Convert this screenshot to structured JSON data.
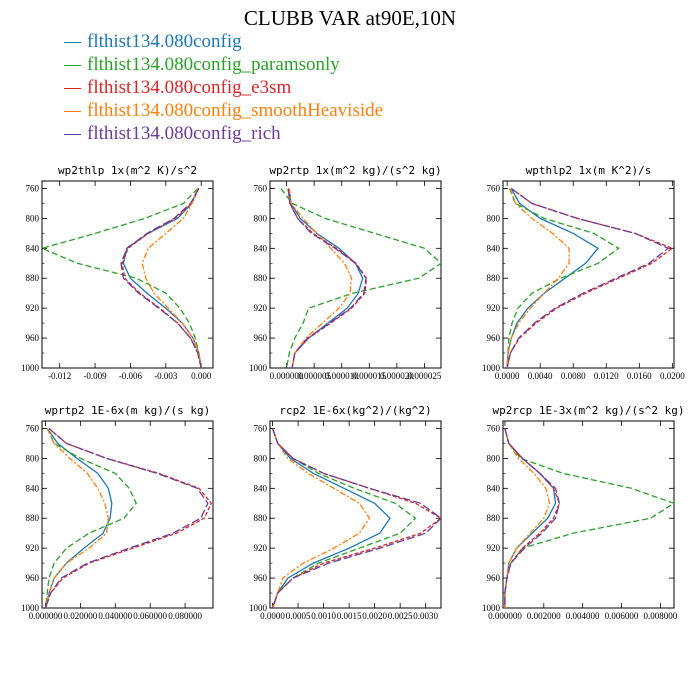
{
  "title": "CLUBB VAR at90E,10N",
  "legend": [
    {
      "label": "flthist134.080config",
      "color": "#1f77b4"
    },
    {
      "label": "flthist134.080config_paramsonly",
      "color": "#2ca02c"
    },
    {
      "label": "flthist134.080config_e3sm",
      "color": "#d62728"
    },
    {
      "label": "flthist134.080config_smoothHeaviside",
      "color": "#ff7f0e"
    },
    {
      "label": "flthist134.080config_rich",
      "color": "#6a3d9a"
    }
  ],
  "chart_data": [
    {
      "type": "line",
      "title": "wp2thlp  1x(m^2 K)/s^2",
      "xlim": [
        -0.0135,
        0.001
      ],
      "ylim": [
        1000,
        750
      ],
      "y_reversed": true,
      "grid": false,
      "x_ticks": [
        -0.012,
        -0.009,
        -0.006,
        -0.003,
        0.0
      ],
      "x_tick_labels": [
        "-0.012",
        "-0.009",
        "-0.006",
        "-0.003",
        "0.000"
      ],
      "y_ticks": [
        760,
        800,
        840,
        880,
        920,
        960,
        1000
      ],
      "y_tick_labels": [
        "760",
        "800",
        "840",
        "880",
        "920",
        "960",
        "1000"
      ],
      "y": [
        760,
        780,
        800,
        820,
        840,
        860,
        880,
        900,
        920,
        940,
        960,
        980,
        1000
      ],
      "series": [
        {
          "name": "flthist134.080config",
          "color": "#1f77b4",
          "values": [
            -0.0003,
            -0.0008,
            -0.002,
            -0.0045,
            -0.0063,
            -0.0066,
            -0.006,
            -0.0046,
            -0.003,
            -0.0016,
            -0.0007,
            -0.0002,
            0.0
          ]
        },
        {
          "name": "flthist134.080config_paramsonly",
          "color": "#2ca02c",
          "values": [
            -0.0003,
            -0.0015,
            -0.0048,
            -0.009,
            -0.0135,
            -0.0105,
            -0.0055,
            -0.003,
            -0.0018,
            -0.001,
            -0.0005,
            -0.0002,
            0.0
          ]
        },
        {
          "name": "flthist134.080config_e3sm",
          "color": "#d62728",
          "values": [
            -0.0002,
            -0.0008,
            -0.0022,
            -0.0045,
            -0.0062,
            -0.0067,
            -0.0065,
            -0.0052,
            -0.0035,
            -0.002,
            -0.0009,
            -0.0003,
            0.0
          ]
        },
        {
          "name": "flthist134.080config_smoothHeaviside",
          "color": "#ff7f0e",
          "values": [
            -0.0003,
            -0.0008,
            -0.0015,
            -0.003,
            -0.0045,
            -0.005,
            -0.0047,
            -0.004,
            -0.0028,
            -0.0016,
            -0.0007,
            -0.0002,
            0.0
          ]
        },
        {
          "name": "flthist134.080config_rich",
          "color": "#6a3d9a",
          "values": [
            -0.0002,
            -0.0009,
            -0.0023,
            -0.0046,
            -0.0063,
            -0.0068,
            -0.0066,
            -0.0053,
            -0.0036,
            -0.002,
            -0.0009,
            -0.0003,
            0.0
          ]
        }
      ]
    },
    {
      "type": "line",
      "title": "wp2rtp  1x(m^2 kg)/(s^2 kg)",
      "xlim": [
        -3e-06,
        2.8e-05
      ],
      "ylim": [
        1000,
        750
      ],
      "y_reversed": true,
      "grid": false,
      "x_ticks": [
        0.0,
        5e-06,
        1e-05,
        1.5e-05,
        2e-05,
        2.5e-05
      ],
      "x_tick_labels": [
        "0.000000",
        "0.000005",
        "0.000010",
        "0.000015",
        "0.000020",
        "0.000025"
      ],
      "y_ticks": [
        760,
        800,
        840,
        880,
        920,
        960,
        1000
      ],
      "y_tick_labels": [
        "760",
        "800",
        "840",
        "880",
        "920",
        "960",
        "1000"
      ],
      "y": [
        760,
        780,
        800,
        820,
        840,
        860,
        880,
        900,
        920,
        940,
        960,
        980,
        1000
      ],
      "series": [
        {
          "name": "flthist134.080config",
          "color": "#1f77b4",
          "values": [
            5e-07,
            8e-07,
            2.5e-06,
            5.5e-06,
            9.5e-06,
            1.25e-05,
            1.38e-05,
            1.3e-05,
            1.1e-05,
            7.5e-06,
            4e-06,
            1.5e-06,
            1e-06
          ]
        },
        {
          "name": "flthist134.080config_paramsonly",
          "color": "#2ca02c",
          "values": [
            -1e-06,
            1e-06,
            7e-06,
            1.6e-05,
            2.5e-05,
            2.8e-05,
            2.4e-05,
            1.2e-05,
            4e-06,
            3e-06,
            1.5e-06,
            5e-07,
            0.0
          ]
        },
        {
          "name": "flthist134.080config_e3sm",
          "color": "#d62728",
          "values": [
            3e-07,
            6e-07,
            2e-06,
            4.8e-06,
            9e-06,
            1.26e-05,
            1.45e-05,
            1.42e-05,
            1.18e-05,
            8e-06,
            4e-06,
            1.5e-06,
            1e-06
          ]
        },
        {
          "name": "flthist134.080config_smoothHeaviside",
          "color": "#ff7f0e",
          "values": [
            5e-07,
            8e-07,
            3e-06,
            5.5e-06,
            8e-06,
            1.05e-05,
            1.18e-05,
            1.15e-05,
            9.5e-06,
            6.5e-06,
            3.5e-06,
            1.5e-06,
            1e-06
          ]
        },
        {
          "name": "flthist134.080config_rich",
          "color": "#6a3d9a",
          "values": [
            3e-07,
            6e-07,
            2e-06,
            4.5e-06,
            8.8e-06,
            1.25e-05,
            1.44e-05,
            1.4e-05,
            1.16e-05,
            7.8e-06,
            3.8e-06,
            1.5e-06,
            1e-06
          ]
        }
      ]
    },
    {
      "type": "line",
      "title": "wpthlp2  1x(m K^2)/s",
      "xlim": [
        -0.0005,
        0.0202
      ],
      "ylim": [
        1000,
        750
      ],
      "y_reversed": true,
      "grid": false,
      "x_ticks": [
        0.0,
        0.004,
        0.008,
        0.012,
        0.016,
        0.02
      ],
      "x_tick_labels": [
        "0.0000",
        "0.0040",
        "0.0080",
        "0.0120",
        "0.0160",
        "0.0200"
      ],
      "y_ticks": [
        760,
        800,
        840,
        880,
        920,
        960,
        1000
      ],
      "y_tick_labels": [
        "760",
        "800",
        "840",
        "880",
        "920",
        "960",
        "1000"
      ],
      "y": [
        760,
        780,
        800,
        820,
        840,
        860,
        880,
        900,
        920,
        940,
        960,
        980,
        1000
      ],
      "series": [
        {
          "name": "flthist134.080config",
          "color": "#1f77b4",
          "values": [
            0.0005,
            0.0015,
            0.004,
            0.008,
            0.011,
            0.0095,
            0.007,
            0.0045,
            0.0025,
            0.0012,
            0.0005,
            0.0001,
            0.0
          ]
        },
        {
          "name": "flthist134.080config_paramsonly",
          "color": "#2ca02c",
          "values": [
            0.0003,
            0.001,
            0.0045,
            0.0105,
            0.0135,
            0.011,
            0.0065,
            0.003,
            0.0013,
            0.0006,
            0.0002,
            0.0001,
            0.0
          ]
        },
        {
          "name": "flthist134.080config_e3sm",
          "color": "#d62728",
          "values": [
            0.0005,
            0.003,
            0.0085,
            0.0155,
            0.02,
            0.0175,
            0.0135,
            0.0095,
            0.006,
            0.0035,
            0.0015,
            0.0004,
            0.0
          ]
        },
        {
          "name": "flthist134.080config_smoothHeaviside",
          "color": "#ff7f0e",
          "values": [
            0.0004,
            0.001,
            0.003,
            0.0055,
            0.0075,
            0.0075,
            0.0062,
            0.0045,
            0.0028,
            0.0014,
            0.0005,
            0.0001,
            0.0
          ]
        },
        {
          "name": "flthist134.080config_rich",
          "color": "#6a3d9a",
          "values": [
            0.0005,
            0.003,
            0.0085,
            0.0155,
            0.0195,
            0.0172,
            0.0132,
            0.0092,
            0.0058,
            0.0033,
            0.0014,
            0.0004,
            0.0
          ]
        }
      ]
    },
    {
      "type": "line",
      "title": "wprtp2  1E-6x(m kg)/(s kg)",
      "xlim": [
        -0.002,
        0.096
      ],
      "ylim": [
        1000,
        750
      ],
      "y_reversed": true,
      "grid": false,
      "x_ticks": [
        0.0,
        0.02,
        0.04,
        0.06,
        0.08
      ],
      "x_tick_labels": [
        "0.000000",
        "0.020000",
        "0.040000",
        "0.060000",
        "0.080000"
      ],
      "y_ticks": [
        760,
        800,
        840,
        880,
        920,
        960,
        1000
      ],
      "y_tick_labels": [
        "760",
        "800",
        "840",
        "880",
        "920",
        "960",
        "1000"
      ],
      "y": [
        760,
        780,
        800,
        820,
        840,
        860,
        880,
        900,
        920,
        940,
        960,
        980,
        1000
      ],
      "series": [
        {
          "name": "flthist134.080config",
          "color": "#1f77b4",
          "values": [
            0.001,
            0.007,
            0.018,
            0.03,
            0.036,
            0.038,
            0.037,
            0.033,
            0.022,
            0.012,
            0.005,
            0.002,
            0.0
          ]
        },
        {
          "name": "flthist134.080config_paramsonly",
          "color": "#2ca02c",
          "values": [
            0.001,
            0.005,
            0.02,
            0.04,
            0.048,
            0.052,
            0.045,
            0.025,
            0.012,
            0.005,
            0.002,
            0.001,
            0.0
          ]
        },
        {
          "name": "flthist134.080config_e3sm",
          "color": "#d62728",
          "values": [
            0.002,
            0.012,
            0.035,
            0.065,
            0.088,
            0.095,
            0.091,
            0.075,
            0.05,
            0.025,
            0.01,
            0.003,
            0.0
          ]
        },
        {
          "name": "flthist134.080config_smoothHeaviside",
          "color": "#ff7f0e",
          "values": [
            0.001,
            0.005,
            0.014,
            0.024,
            0.03,
            0.034,
            0.036,
            0.035,
            0.025,
            0.012,
            0.005,
            0.002,
            0.0
          ]
        },
        {
          "name": "flthist134.080config_rich",
          "color": "#6a3d9a",
          "values": [
            0.002,
            0.012,
            0.035,
            0.064,
            0.087,
            0.093,
            0.089,
            0.073,
            0.048,
            0.024,
            0.009,
            0.003,
            0.0
          ]
        }
      ]
    },
    {
      "type": "line",
      "title": "rcp2  1E-6x(kg^2)/(kg^2)",
      "xlim": [
        -5e-05,
        0.0033
      ],
      "ylim": [
        1000,
        750
      ],
      "y_reversed": true,
      "grid": false,
      "x_ticks": [
        0.0,
        0.0005,
        0.001,
        0.0015,
        0.002,
        0.0025,
        0.003
      ],
      "x_tick_labels": [
        "0.0000",
        "0.0005",
        "0.0010",
        "0.0015",
        "0.0020",
        "0.0025",
        "0.0030"
      ],
      "y_ticks": [
        760,
        800,
        840,
        880,
        920,
        960,
        1000
      ],
      "y_tick_labels": [
        "760",
        "800",
        "840",
        "880",
        "920",
        "960",
        "1000"
      ],
      "y": [
        760,
        780,
        800,
        820,
        840,
        860,
        880,
        900,
        920,
        940,
        960,
        980,
        1000
      ],
      "series": [
        {
          "name": "flthist134.080config",
          "color": "#1f77b4",
          "values": [
            0.0,
            0.0001,
            0.00035,
            0.0008,
            0.0014,
            0.002,
            0.0023,
            0.0021,
            0.0015,
            0.0008,
            0.0003,
            0.0001,
            0.0
          ]
        },
        {
          "name": "flthist134.080config_paramsonly",
          "color": "#2ca02c",
          "values": [
            0.0,
            0.0001,
            0.0004,
            0.0009,
            0.0016,
            0.0024,
            0.0028,
            0.0025,
            0.0017,
            0.0009,
            0.0004,
            0.0001,
            0.0
          ]
        },
        {
          "name": "flthist134.080config_e3sm",
          "color": "#d62728",
          "values": [
            0.0,
            0.0001,
            0.0004,
            0.001,
            0.0019,
            0.0028,
            0.0033,
            0.0029,
            0.002,
            0.001,
            0.0004,
            0.0001,
            0.0
          ]
        },
        {
          "name": "flthist134.080config_smoothHeaviside",
          "color": "#ff7f0e",
          "values": [
            0.0,
            0.0001,
            0.0003,
            0.0007,
            0.0012,
            0.0017,
            0.0019,
            0.0017,
            0.0012,
            0.0006,
            0.0002,
            0.0001,
            0.0
          ]
        },
        {
          "name": "flthist134.080config_rich",
          "color": "#6a3d9a",
          "values": [
            0.0,
            0.0001,
            0.0004,
            0.001,
            0.0019,
            0.0029,
            0.0033,
            0.003,
            0.0021,
            0.0011,
            0.0004,
            0.0001,
            0.0
          ]
        }
      ]
    },
    {
      "type": "line",
      "title": "wp2rcp  1E-3x(m^2 kg)/(s^2 kg)",
      "xlim": [
        -0.0001,
        0.0087
      ],
      "ylim": [
        1000,
        750
      ],
      "y_reversed": true,
      "grid": false,
      "x_ticks": [
        0.0,
        0.002,
        0.004,
        0.006,
        0.008
      ],
      "x_tick_labels": [
        "0.000000",
        "0.002000",
        "0.004000",
        "0.006000",
        "0.008000"
      ],
      "y_ticks": [
        760,
        800,
        840,
        880,
        920,
        960,
        1000
      ],
      "y_tick_labels": [
        "760",
        "800",
        "840",
        "880",
        "920",
        "960",
        "1000"
      ],
      "y": [
        760,
        780,
        800,
        820,
        840,
        860,
        880,
        900,
        920,
        940,
        960,
        980,
        1000
      ],
      "series": [
        {
          "name": "flthist134.080config",
          "color": "#1f77b4",
          "values": [
            0.0,
            0.0002,
            0.0009,
            0.0018,
            0.0025,
            0.0026,
            0.0022,
            0.0014,
            0.0006,
            0.0002,
            0.0001,
            0.0,
            0.0
          ]
        },
        {
          "name": "flthist134.080config_paramsonly",
          "color": "#2ca02c",
          "values": [
            0.0,
            0.0002,
            0.0008,
            0.003,
            0.0065,
            0.0087,
            0.0075,
            0.0035,
            0.0009,
            0.0003,
            0.0001,
            0.0,
            0.0
          ]
        },
        {
          "name": "flthist134.080config_e3sm",
          "color": "#d62728",
          "values": [
            0.0,
            0.0002,
            0.0009,
            0.0018,
            0.0025,
            0.0028,
            0.0025,
            0.0018,
            0.0009,
            0.0003,
            0.0001,
            0.0,
            0.0
          ]
        },
        {
          "name": "flthist134.080config_smoothHeaviside",
          "color": "#ff7f0e",
          "values": [
            0.0,
            0.0002,
            0.0007,
            0.0015,
            0.0021,
            0.0023,
            0.002,
            0.0013,
            0.0006,
            0.0002,
            0.0001,
            0.0,
            0.0
          ]
        },
        {
          "name": "flthist134.080config_rich",
          "color": "#6a3d9a",
          "values": [
            0.0,
            0.0002,
            0.0009,
            0.0018,
            0.0026,
            0.0028,
            0.0026,
            0.0019,
            0.001,
            0.0003,
            0.0001,
            0.0,
            0.0
          ]
        }
      ]
    }
  ]
}
